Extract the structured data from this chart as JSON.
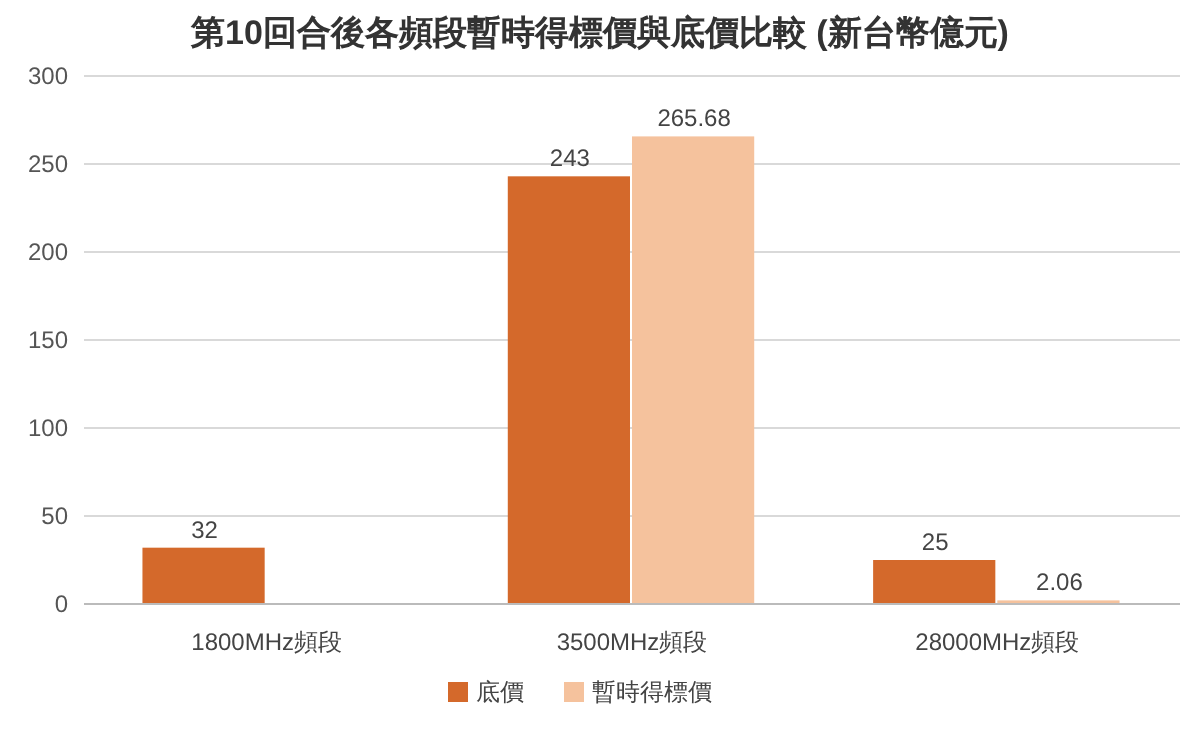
{
  "chart_data": {
    "type": "bar",
    "title": "第10回合後各頻段暫時得標價與底價比較 (新台幣億元)",
    "categories": [
      "1800MHz頻段",
      "3500MHz頻段",
      "28000MHz頻段"
    ],
    "series": [
      {
        "name": "底價",
        "color": "#d4692b",
        "values": [
          32,
          243,
          25
        ]
      },
      {
        "name": "暫時得標價",
        "color": "#f5c29d",
        "values": [
          null,
          265.68,
          2.06
        ]
      }
    ],
    "ylim": [
      0,
      300
    ],
    "yticks": [
      0,
      50,
      100,
      150,
      200,
      250,
      300
    ],
    "grid": "y",
    "legend": "bottom",
    "data_labels": true
  }
}
